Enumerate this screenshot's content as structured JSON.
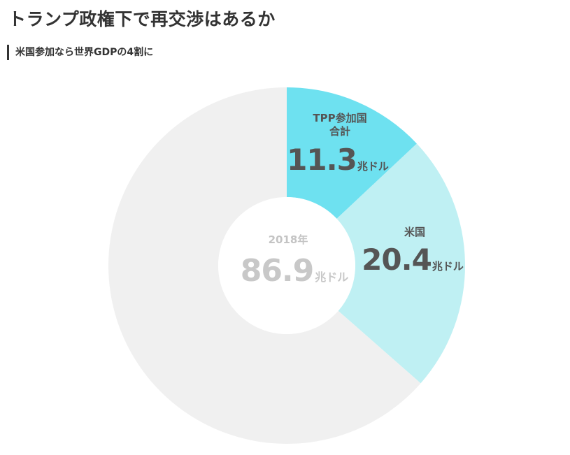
{
  "title": "トランプ政権下で再交渉はあるか",
  "subtitle": "米国参加なら世界GDPの4割に",
  "chart_data": {
    "type": "pie",
    "variant": "donut",
    "total": {
      "year_label": "2018年",
      "value": 86.9,
      "value_text": "86.9",
      "unit": "兆ドル"
    },
    "slices": [
      {
        "name_lines": [
          "TPP参加国",
          "合計"
        ],
        "value": 11.3,
        "value_text": "11.3",
        "unit": "兆ドル",
        "color": "#6ee1f0"
      },
      {
        "name_lines": [
          "米国"
        ],
        "value": 20.4,
        "value_text": "20.4",
        "unit": "兆ドル",
        "color": "#bff0f3"
      }
    ],
    "remainder_color": "#f0f0f0"
  }
}
